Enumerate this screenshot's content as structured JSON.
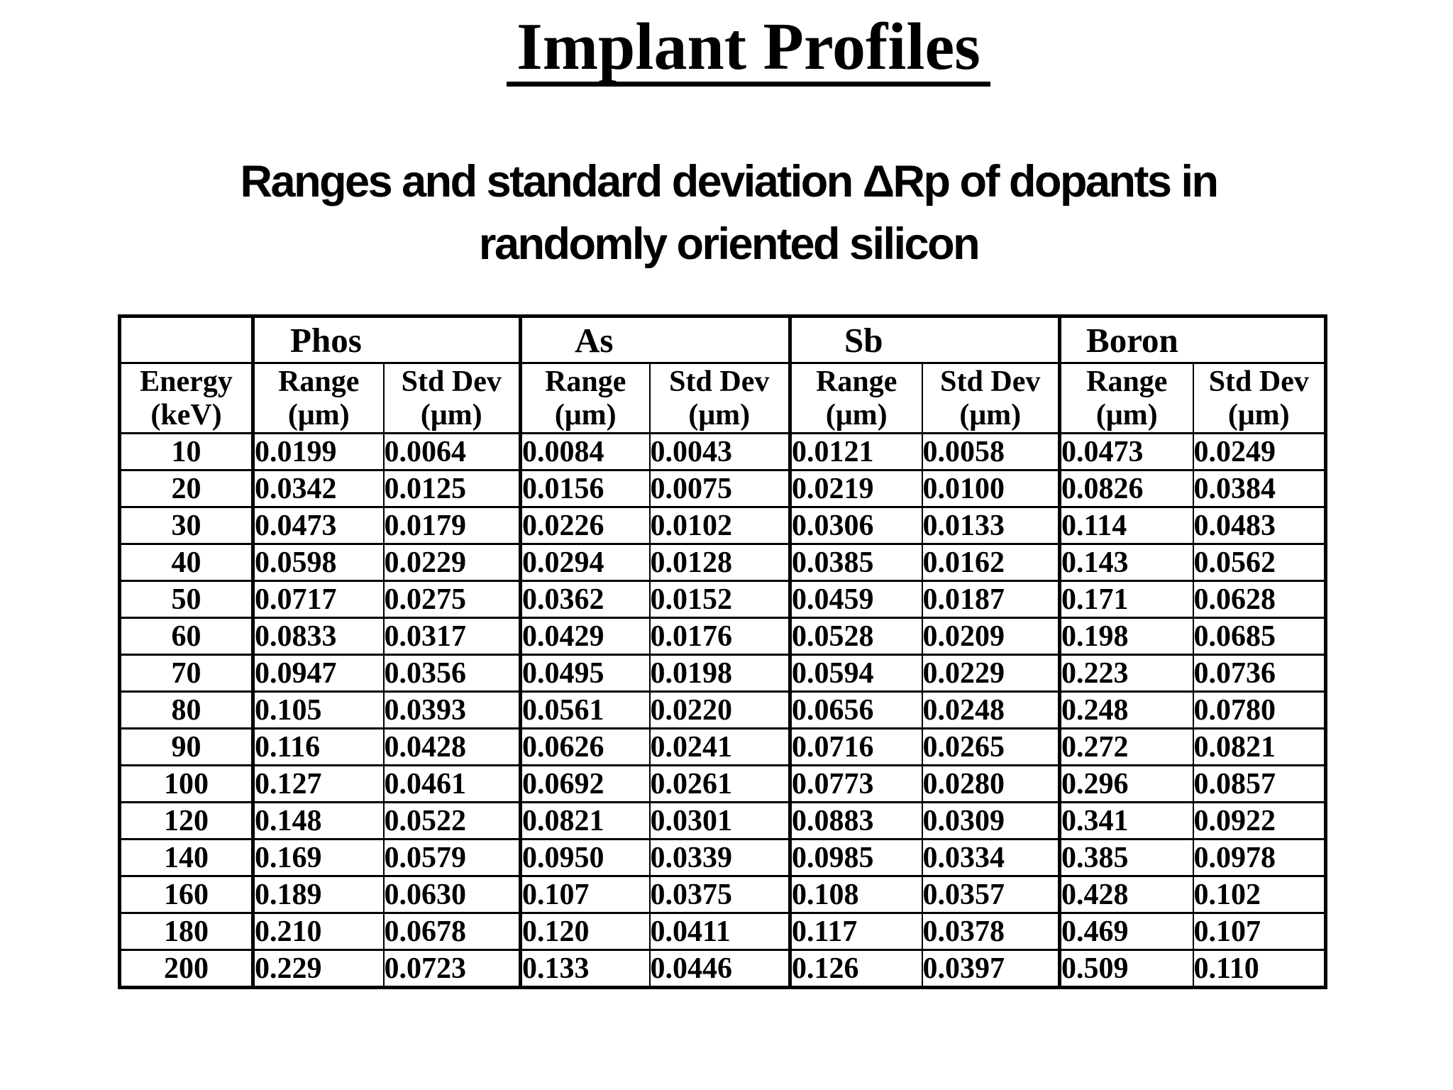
{
  "header": {
    "title": "Implant Profiles"
  },
  "subtitle": {
    "line1": "Ranges and standard deviation ΔRp of dopants in",
    "line2": "randomly oriented silicon"
  },
  "table": {
    "groups": [
      "Phos",
      "As",
      "Sb",
      "Boron"
    ],
    "columns": {
      "energy": [
        "Energy",
        "(keV)"
      ],
      "range": [
        "Range",
        "(μm)"
      ],
      "std": [
        "Std Dev",
        "(μm)"
      ]
    },
    "rows": [
      [
        "10",
        "0.0199",
        "0.0064",
        "0.0084",
        "0.0043",
        "0.0121",
        "0.0058",
        "0.0473",
        "0.0249"
      ],
      [
        "20",
        "0.0342",
        "0.0125",
        "0.0156",
        "0.0075",
        "0.0219",
        "0.0100",
        "0.0826",
        "0.0384"
      ],
      [
        "30",
        "0.0473",
        "0.0179",
        "0.0226",
        "0.0102",
        "0.0306",
        "0.0133",
        "0.114",
        "0.0483"
      ],
      [
        "40",
        "0.0598",
        "0.0229",
        "0.0294",
        "0.0128",
        "0.0385",
        "0.0162",
        "0.143",
        "0.0562"
      ],
      [
        "50",
        "0.0717",
        "0.0275",
        "0.0362",
        "0.0152",
        "0.0459",
        "0.0187",
        "0.171",
        "0.0628"
      ],
      [
        "60",
        "0.0833",
        "0.0317",
        "0.0429",
        "0.0176",
        "0.0528",
        "0.0209",
        "0.198",
        "0.0685"
      ],
      [
        "70",
        "0.0947",
        "0.0356",
        "0.0495",
        "0.0198",
        "0.0594",
        "0.0229",
        "0.223",
        "0.0736"
      ],
      [
        "80",
        "0.105",
        "0.0393",
        "0.0561",
        "0.0220",
        "0.0656",
        "0.0248",
        "0.248",
        "0.0780"
      ],
      [
        "90",
        "0.116",
        "0.0428",
        "0.0626",
        "0.0241",
        "0.0716",
        "0.0265",
        "0.272",
        "0.0821"
      ],
      [
        "100",
        "0.127",
        "0.0461",
        "0.0692",
        "0.0261",
        "0.0773",
        "0.0280",
        "0.296",
        "0.0857"
      ],
      [
        "120",
        "0.148",
        "0.0522",
        "0.0821",
        "0.0301",
        "0.0883",
        "0.0309",
        "0.341",
        "0.0922"
      ],
      [
        "140",
        "0.169",
        "0.0579",
        "0.0950",
        "0.0339",
        "0.0985",
        "0.0334",
        "0.385",
        "0.0978"
      ],
      [
        "160",
        "0.189",
        "0.0630",
        "0.107",
        "0.0375",
        "0.108",
        "0.0357",
        "0.428",
        "0.102"
      ],
      [
        "180",
        "0.210",
        "0.0678",
        "0.120",
        "0.0411",
        "0.117",
        "0.0378",
        "0.469",
        "0.107"
      ],
      [
        "200",
        "0.229",
        "0.0723",
        "0.133",
        "0.0446",
        "0.126",
        "0.0397",
        "0.509",
        "0.110"
      ]
    ]
  }
}
